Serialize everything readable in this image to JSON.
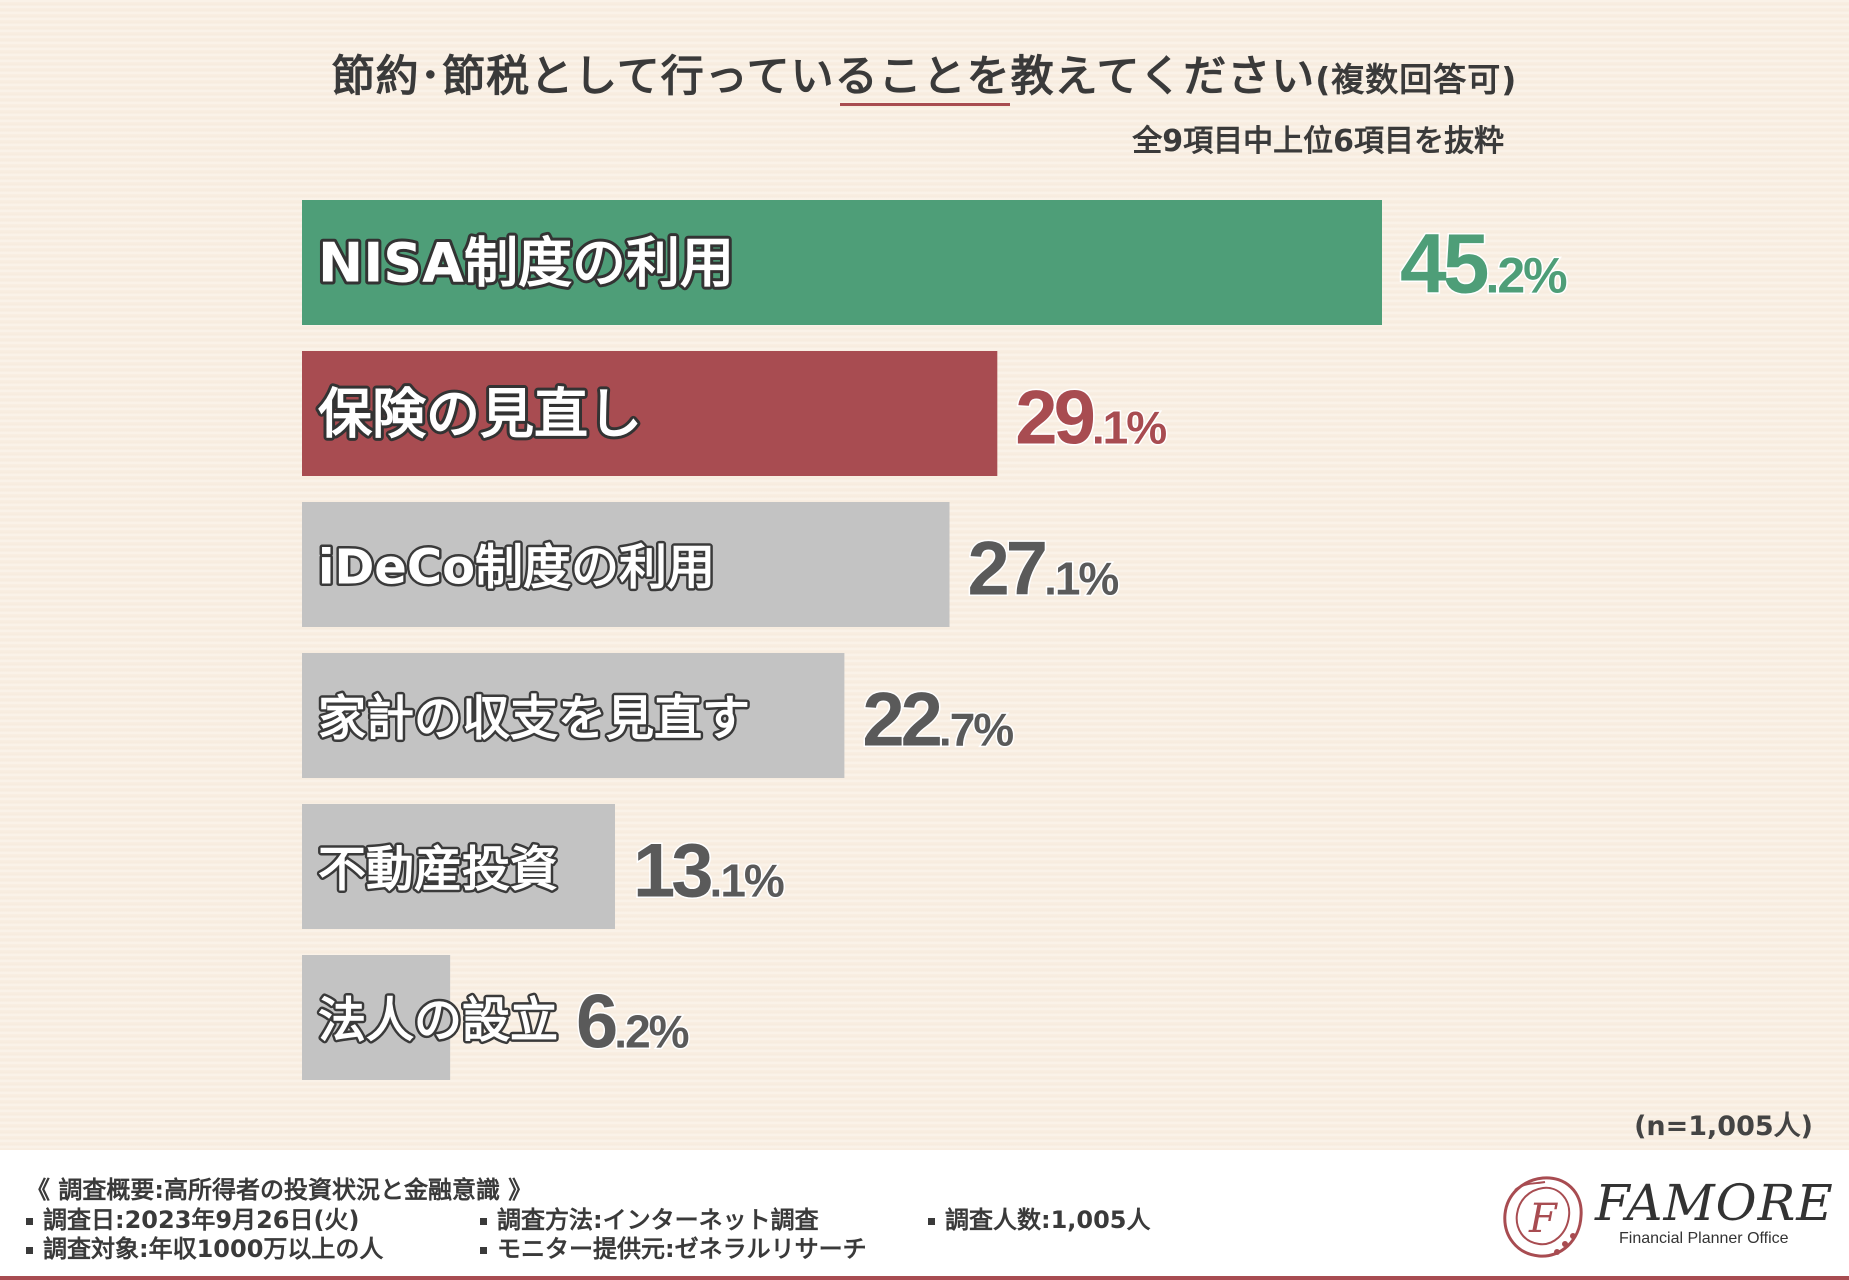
{
  "header": {
    "title_main": "節約･節税として行っていることを教えてください",
    "title_paren": "(複数回答可)",
    "subtitle": "全9項目中上位6項目を抜粋"
  },
  "colors": {
    "highlight_green": "#4e9e78",
    "highlight_red": "#a84c51",
    "neutral_gray": "#c3c3c3",
    "neutral_text": "#5a5a5a"
  },
  "chart_data": {
    "type": "bar",
    "orientation": "horizontal",
    "title": "節約･節税として行っていることを教えてください(複数回答可)",
    "subtitle": "全9項目中上位6項目を抜粋",
    "categories": [
      "NISA制度の利用",
      "保険の見直し",
      "iDeCo制度の利用",
      "家計の収支を見直す",
      "不動産投資",
      "法人の設立"
    ],
    "values": [
      45.2,
      29.1,
      27.1,
      22.7,
      13.1,
      6.2
    ],
    "value_labels": [
      {
        "int": "45",
        "dec": ".2%"
      },
      {
        "int": "29",
        "dec": ".1%"
      },
      {
        "int": "27",
        "dec": ".1%"
      },
      {
        "int": "22",
        "dec": ".7%"
      },
      {
        "int": "13",
        "dec": ".1%"
      },
      {
        "int": "6",
        "dec": ".2%"
      }
    ],
    "unit": "%",
    "xlim": [
      0,
      45.2
    ],
    "grid": false,
    "sample_size": "(n=1,005人)"
  },
  "footer": {
    "overview": "《 調査概要:高所得者の投資状況と金融意識 》",
    "date": "調査日:2023年9月26日(火)",
    "target": "調査対象:年収1000万以上の人",
    "method": "調査方法:インターネット調査",
    "provider": "モニター提供元:ゼネラルリサーチ",
    "count": "調査人数:1,005人"
  },
  "logo": {
    "monogram": "F",
    "name": "FAMORE",
    "tagline": "Financial Planner Office"
  }
}
